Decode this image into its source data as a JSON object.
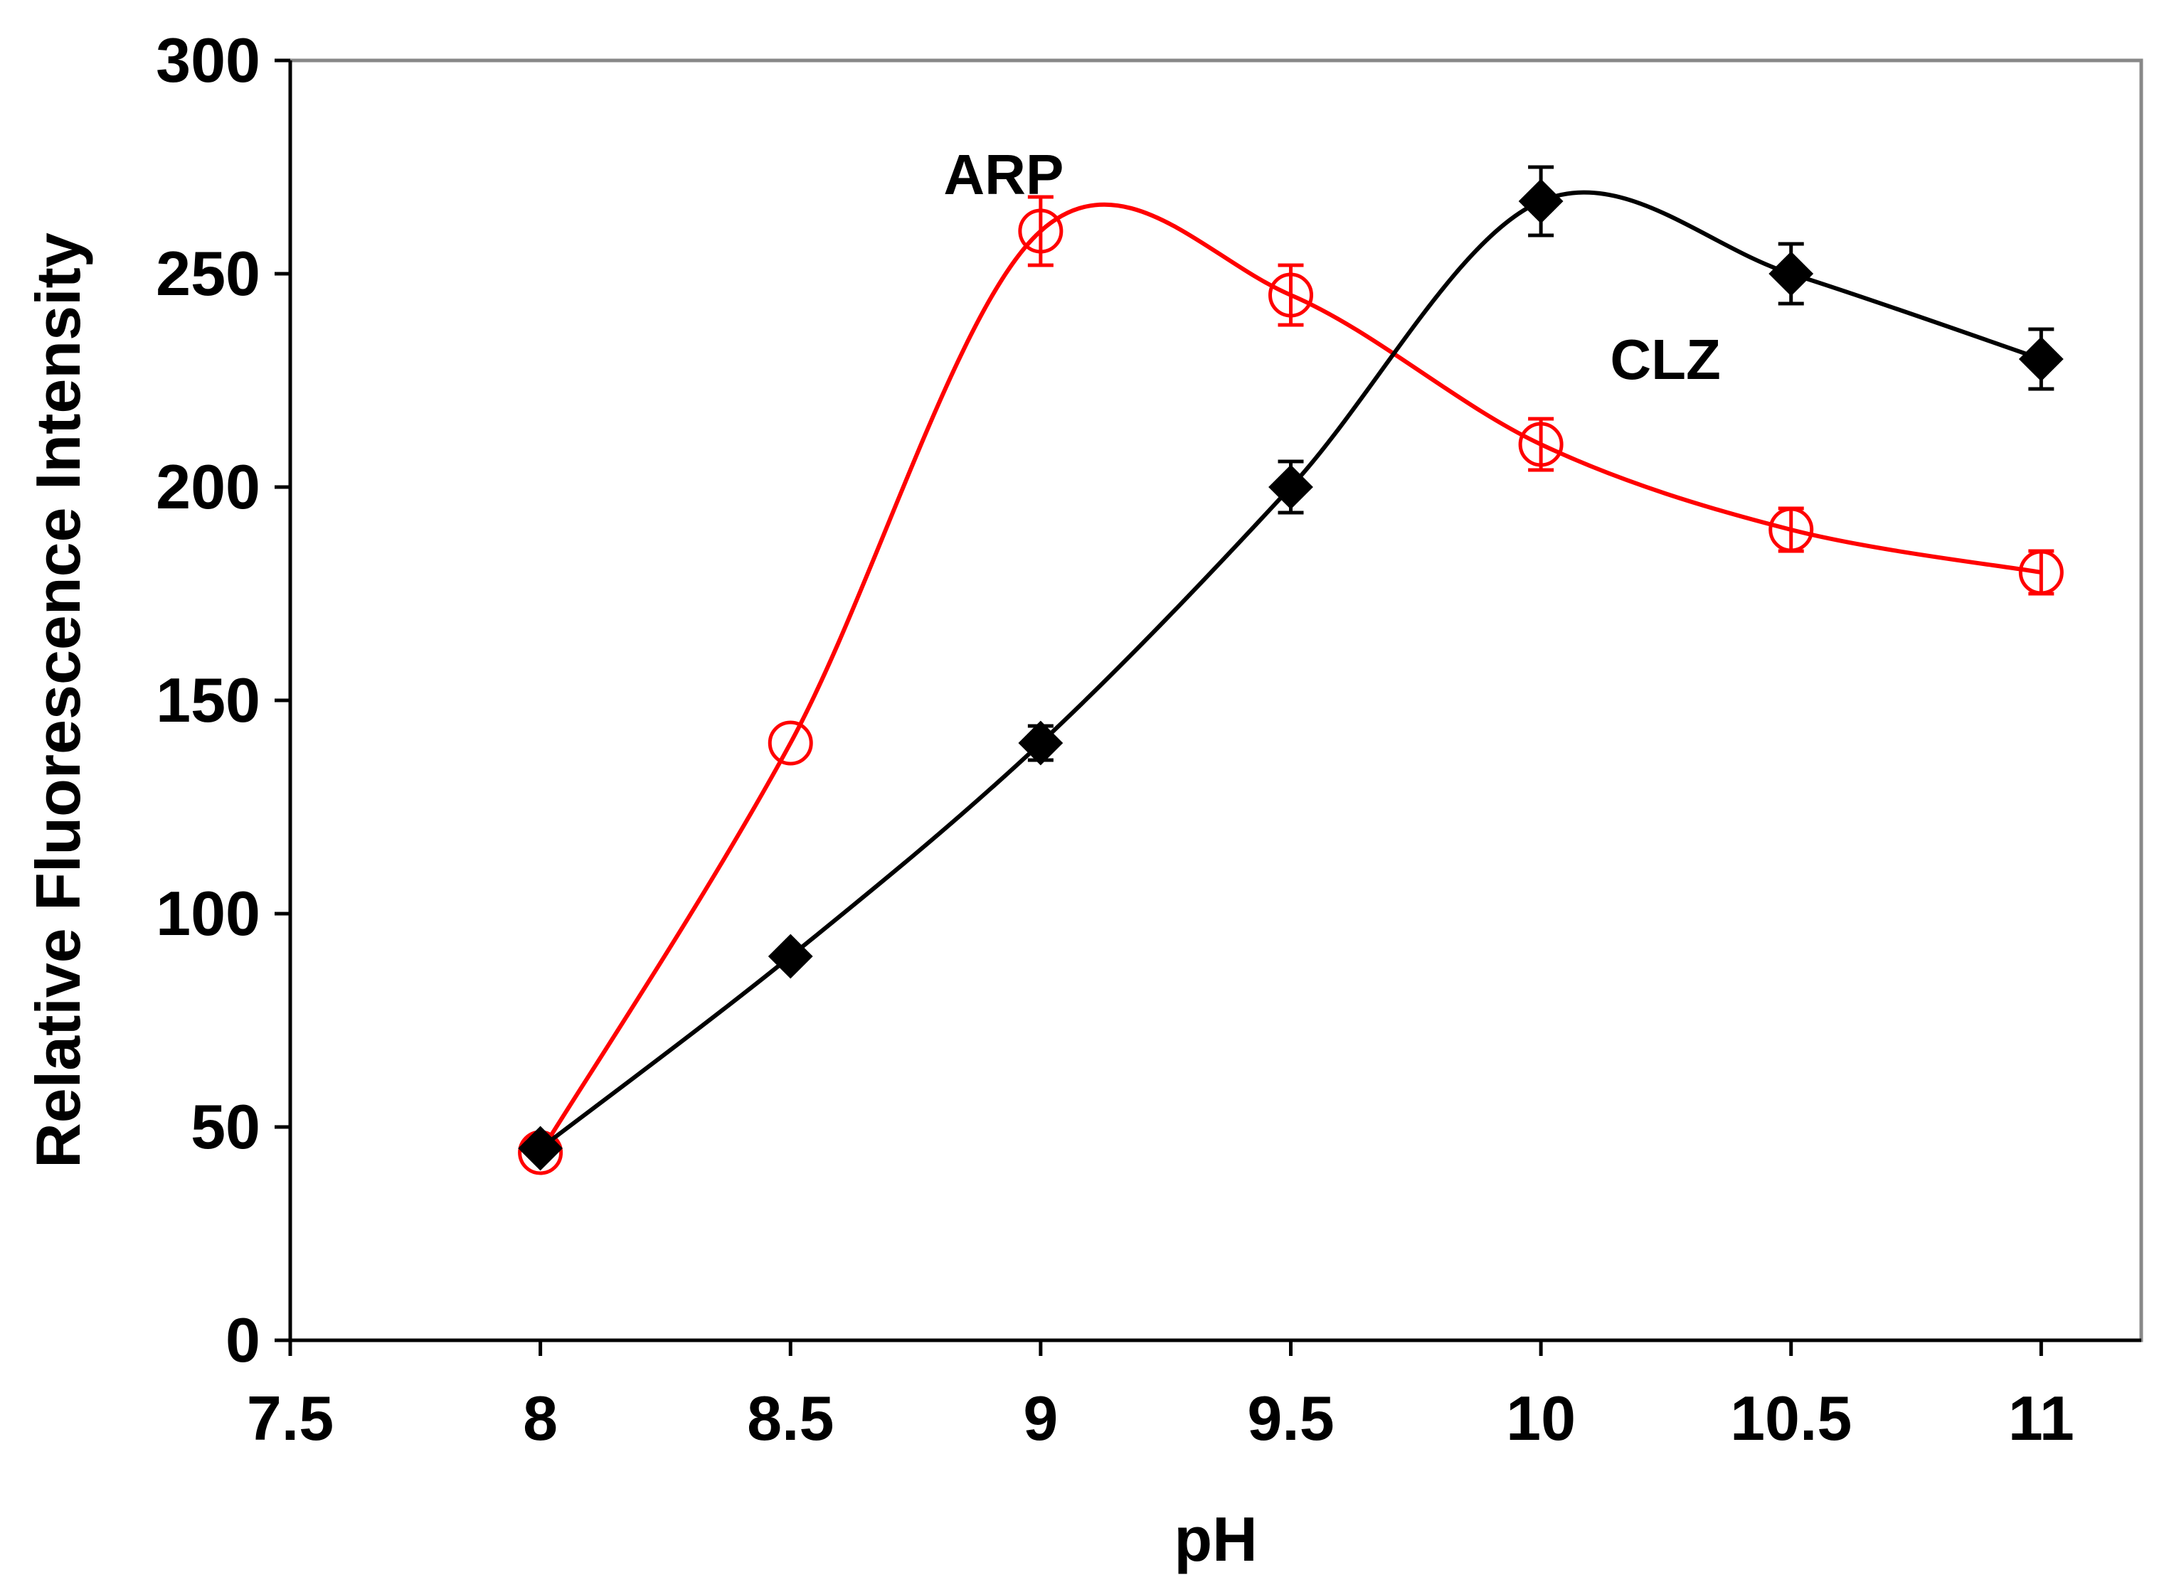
{
  "chart_data": {
    "type": "line",
    "title": "",
    "xlabel": "pH",
    "ylabel": "Relative Fluorescence Intensity",
    "xlim": [
      7.5,
      11.2
    ],
    "ylim": [
      0,
      300
    ],
    "xticks": [
      7.5,
      8,
      8.5,
      9,
      9.5,
      10,
      10.5,
      11
    ],
    "xtick_labels": [
      "7.5",
      "8",
      "8.5",
      "9",
      "9.5",
      "10",
      "10.5",
      "11"
    ],
    "yticks": [
      0,
      50,
      100,
      150,
      200,
      250,
      300
    ],
    "ytick_labels": [
      "0",
      "50",
      "100",
      "150",
      "200",
      "250",
      "300"
    ],
    "grid": false,
    "series": [
      {
        "name": "CLZ",
        "color": "#000000",
        "marker": "filled-diamond",
        "x": [
          8,
          8.5,
          9,
          9.5,
          10,
          10.5,
          11
        ],
        "values": [
          45,
          90,
          140,
          200,
          267,
          250,
          230
        ],
        "errors": [
          0,
          0,
          4,
          6,
          8,
          7,
          7
        ]
      },
      {
        "name": "ARP",
        "color": "#ff0000",
        "marker": "open-circle",
        "x": [
          8,
          8.5,
          9,
          9.5,
          10,
          10.5,
          11
        ],
        "values": [
          44,
          140,
          260,
          245,
          210,
          190,
          180
        ],
        "errors": [
          0,
          0,
          8,
          7,
          6,
          5,
          5
        ]
      }
    ],
    "annotations": [
      {
        "text": "ARP",
        "series": "ARP"
      },
      {
        "text": "CLZ",
        "series": "CLZ"
      }
    ]
  }
}
